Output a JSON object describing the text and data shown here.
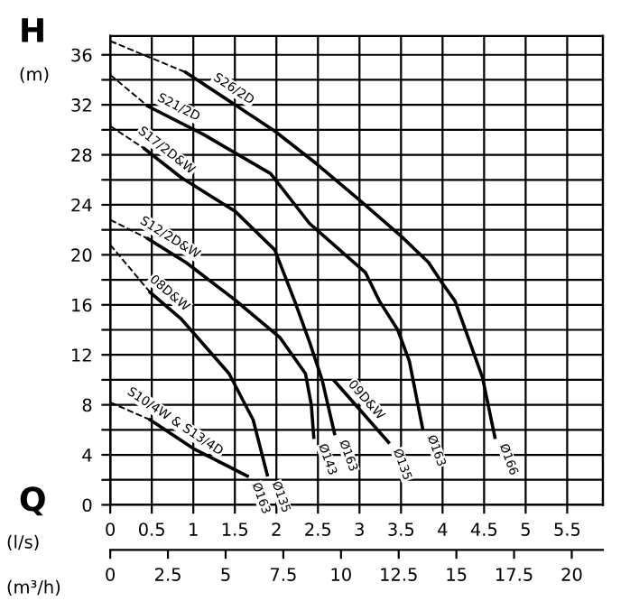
{
  "chart_data": {
    "type": "line",
    "xlabel": "(l/s)",
    "x2label": "(m³/h)",
    "ylabel": "(m)",
    "annotations": [
      "H",
      "Q",
      {
        "text": "Ø166",
        "x": 4.63,
        "y": 5.4
      },
      {
        "text": "Ø163",
        "x": 3.76,
        "y": 6.1
      },
      {
        "text": "Ø135",
        "x": 3.35,
        "y": 5.0
      },
      {
        "text": "Ø163",
        "x": 2.7,
        "y": 5.7
      },
      {
        "text": "Ø143",
        "x": 2.45,
        "y": 5.4
      },
      {
        "text": "Ø135",
        "x": 1.89,
        "y": 2.4
      },
      {
        "text": "Ø163",
        "x": 1.65,
        "y": 2.3
      }
    ],
    "series": [
      {
        "color": "#000000",
        "line_style": "dashed",
        "x": [
          0,
          0.91
        ],
        "values": [
          37.1,
          34.6
        ]
      },
      {
        "name": "S26/2D",
        "color": "#000000",
        "line_style": "solid",
        "x": [
          0.91,
          1.98,
          2.48,
          2.98,
          3.5,
          3.83,
          4.0,
          4.15,
          4.48,
          4.63
        ],
        "values": [
          34.6,
          29.9,
          27.3,
          24.5,
          21.5,
          19.4,
          17.7,
          16.3,
          10.2,
          5.4
        ]
      },
      {
        "color": "#000000",
        "line_style": "dashed",
        "x": [
          0,
          0.45
        ],
        "values": [
          34.4,
          31.9
        ]
      },
      {
        "name": "S21/2D",
        "color": "#000000",
        "line_style": "solid",
        "x": [
          0.45,
          1.13,
          1.93,
          2.4,
          3.07,
          3.24,
          3.46,
          3.6,
          3.76
        ],
        "values": [
          31.9,
          29.6,
          26.5,
          22.5,
          18.6,
          16.3,
          14.0,
          11.5,
          6.1
        ]
      },
      {
        "color": "#000000",
        "line_style": "dashed",
        "x": [
          0,
          0.41
        ],
        "values": [
          30.3,
          28.5
        ]
      },
      {
        "name": "S17/2D&W",
        "color": "#000000",
        "line_style": "solid",
        "x": [
          0.41,
          0.85,
          1.5,
          1.98,
          2.22,
          2.4,
          2.55,
          2.7
        ],
        "values": [
          28.5,
          26.2,
          23.5,
          20.4,
          16.3,
          13.0,
          10.0,
          5.7
        ]
      },
      {
        "color": "#000000",
        "line_style": "dashed",
        "x": [
          0,
          0.45
        ],
        "values": [
          22.8,
          21.3
        ]
      },
      {
        "name": "S12/2D&W",
        "color": "#000000",
        "line_style": "solid",
        "x": [
          0.45,
          0.91,
          1.5,
          2.04,
          2.35,
          2.42,
          2.45
        ],
        "values": [
          21.3,
          19.4,
          16.4,
          13.4,
          10.5,
          8.0,
          5.4
        ]
      },
      {
        "color": "#000000",
        "line_style": "dashed",
        "x": [
          0,
          0.48
        ],
        "values": [
          20.8,
          17.0
        ]
      },
      {
        "name": "08D&W",
        "color": "#000000",
        "line_style": "solid",
        "x": [
          0.48,
          0.85,
          1.43,
          1.72,
          1.89
        ],
        "values": [
          17.0,
          14.9,
          10.5,
          6.8,
          2.4
        ]
      },
      {
        "name": "09D&W",
        "color": "#000000",
        "line_style": "solid",
        "x": [
          2.7,
          3.35
        ],
        "values": [
          9.9,
          5.0
        ]
      },
      {
        "color": "#000000",
        "line_style": "dashed",
        "x": [
          0,
          0.48
        ],
        "values": [
          8.2,
          6.8
        ]
      },
      {
        "name": "S10/4W & S13/4D",
        "color": "#000000",
        "line_style": "solid",
        "x": [
          0.48,
          1.0,
          1.65
        ],
        "values": [
          6.8,
          4.5,
          2.3
        ]
      }
    ],
    "xlim": [
      0,
      5.93
    ],
    "xticks": [
      0,
      0.5,
      1,
      1.5,
      2,
      2.5,
      3,
      3.5,
      4,
      4.5,
      5,
      5.5
    ],
    "x2lim": [
      0,
      21.35
    ],
    "x2ticks": [
      0,
      2.5,
      5,
      7.5,
      10,
      12.5,
      15,
      17.5,
      20
    ],
    "ylim": [
      0,
      37.5
    ],
    "yticks": [
      0,
      {
        "value": 2,
        "label": null
      },
      4,
      {
        "value": 6,
        "label": null
      },
      8,
      {
        "value": 10,
        "label": null
      },
      12,
      {
        "value": 14,
        "label": null
      },
      16,
      {
        "value": 18,
        "label": null
      },
      20,
      {
        "value": 22,
        "label": null
      },
      24,
      {
        "value": 26,
        "label": null
      },
      28,
      {
        "value": 30,
        "label": null
      },
      32,
      {
        "value": 34,
        "label": null
      },
      36
    ],
    "grid": true,
    "marker": "none"
  }
}
